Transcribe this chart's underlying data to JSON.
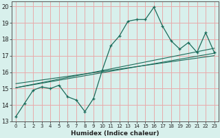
{
  "xlabel": "Humidex (Indice chaleur)",
  "bg_color": "#d8f0ec",
  "plot_bg_color": "#d8f0ec",
  "grid_color": "#e8aaaa",
  "line_color": "#1a6b5a",
  "xlim": [
    -0.5,
    23.5
  ],
  "ylim": [
    13,
    20.3
  ],
  "yticks": [
    13,
    14,
    15,
    16,
    17,
    18,
    19,
    20
  ],
  "xticks": [
    0,
    1,
    2,
    3,
    4,
    5,
    6,
    7,
    8,
    9,
    10,
    11,
    12,
    13,
    14,
    15,
    16,
    17,
    18,
    19,
    20,
    21,
    22,
    23
  ],
  "data_line": {
    "x": [
      0,
      1,
      2,
      3,
      4,
      5,
      6,
      7,
      8,
      9,
      10,
      11,
      12,
      13,
      14,
      15,
      16,
      17,
      18,
      19,
      20,
      21,
      22,
      23
    ],
    "y": [
      13.3,
      14.1,
      14.9,
      15.1,
      15.0,
      15.2,
      14.5,
      14.3,
      13.6,
      14.4,
      16.1,
      17.6,
      18.2,
      19.1,
      19.2,
      19.2,
      19.95,
      18.8,
      17.9,
      17.4,
      17.8,
      17.2,
      18.4,
      17.2
    ]
  },
  "trend_lines": [
    {
      "x": [
        0,
        23
      ],
      "y": [
        15.05,
        17.15
      ]
    },
    {
      "x": [
        0,
        23
      ],
      "y": [
        15.05,
        17.45
      ]
    },
    {
      "x": [
        0,
        23
      ],
      "y": [
        15.3,
        17.0
      ]
    }
  ]
}
